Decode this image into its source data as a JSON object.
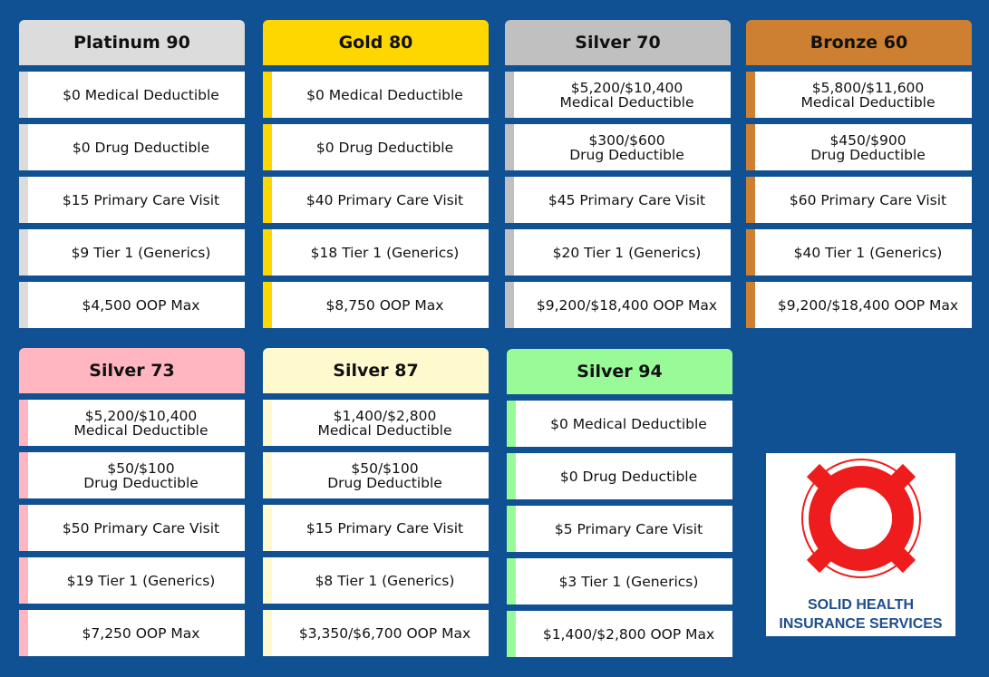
{
  "plans": [
    {
      "name": "Platinum 90",
      "color": "#dcdcdc",
      "rows": [
        "$0 Medical Deductible",
        "$0 Drug Deductible",
        "$15 Primary Care Visit",
        "$9 Tier 1 (Generics)",
        "$4,500 OOP Max"
      ]
    },
    {
      "name": "Gold 80",
      "color": "#ffd700",
      "rows": [
        "$0 Medical Deductible",
        "$0 Drug Deductible",
        "$40 Primary Care Visit",
        "$18 Tier 1 (Generics)",
        "$8,750 OOP Max"
      ]
    },
    {
      "name": "Silver 70",
      "color": "#c0c0c0",
      "rows": [
        "$5,200/$10,400\nMedical Deductible",
        "$300/$600\nDrug Deductible",
        "$45 Primary Care Visit",
        "$20 Tier 1 (Generics)",
        "$9,200/$18,400 OOP Max"
      ]
    },
    {
      "name": "Bronze 60",
      "color": "#cd7f32",
      "rows": [
        "$5,800/$11,600\nMedical Deductible",
        "$450/$900\nDrug Deductible",
        "$60 Primary Care Visit",
        "$40 Tier 1 (Generics)",
        "$9,200/$18,400 OOP Max"
      ]
    },
    {
      "name": "Silver 73",
      "color": "#ffb6c1",
      "rows": [
        "$5,200/$10,400\nMedical Deductible",
        "$50/$100\nDrug Deductible",
        "$50 Primary Care Visit",
        "$19 Tier 1 (Generics)",
        "$7,250 OOP Max"
      ]
    },
    {
      "name": "Silver 87",
      "color": "#fffacd",
      "rows": [
        "$1,400/$2,800\nMedical Deductible",
        "$50/$100\nDrug Deductible",
        "$15 Primary Care Visit",
        "$8 Tier 1 (Generics)",
        "$3,350/$6,700 OOP Max"
      ]
    },
    {
      "name": "Silver 94",
      "color": "#98fb98",
      "rows": [
        "$0 Medical Deductible",
        "$0 Drug Deductible",
        "$5 Primary Care Visit",
        "$3 Tier 1 (Generics)",
        "$1,400/$2,800 OOP Max"
      ]
    }
  ],
  "logo": {
    "text": "SOLID HEALTH\nINSURANCE SERVICES",
    "icon": "life-ring-icon",
    "ring_color": "#ee1c1c",
    "text_color": "#1f4e8c"
  }
}
